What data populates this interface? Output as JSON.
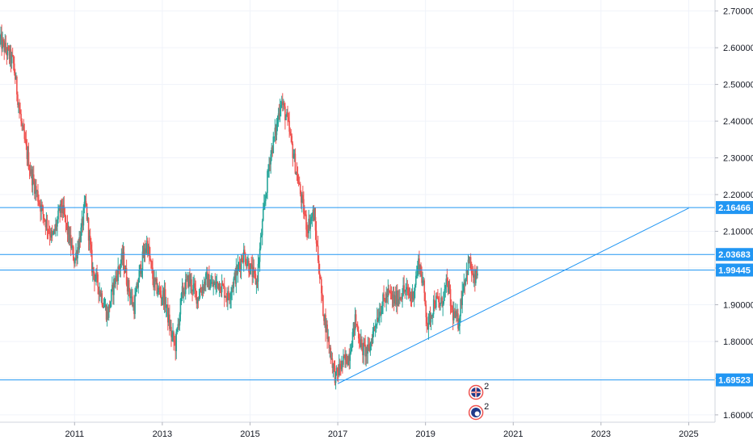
{
  "chart_data": {
    "type": "candlestick",
    "title": "",
    "xlabel": "",
    "ylabel": "",
    "x_ticks": [
      "2011",
      "2013",
      "2015",
      "2017",
      "2019",
      "2021",
      "2023",
      "2025"
    ],
    "y_ticks": [
      "2.70000",
      "2.60000",
      "2.50000",
      "2.40000",
      "2.30000",
      "2.20000",
      "2.10000",
      "2.00000",
      "1.90000",
      "1.80000",
      "1.70000",
      "1.60000"
    ],
    "ylim": [
      1.58,
      2.73
    ],
    "xlim": [
      2009.3,
      2025.6
    ],
    "grid": true,
    "colors": {
      "up": "#26a69a",
      "down": "#ef5350",
      "lines": "#2196f3",
      "tag_text": "#ffffff",
      "grid": "#f0f3fa"
    },
    "price_lines": [
      {
        "value": 2.16466,
        "label": "2.16466"
      },
      {
        "value": 2.03683,
        "label": "2.03683"
      },
      {
        "value": 1.99445,
        "label": "1.99445"
      },
      {
        "value": 1.69523,
        "label": "1.69523"
      }
    ],
    "trend_line": {
      "from": [
        2017.0,
        1.685
      ],
      "to": [
        2025.0,
        2.163
      ]
    },
    "price_path": [
      [
        2009.3,
        2.62
      ],
      [
        2009.6,
        2.56
      ],
      [
        2009.8,
        2.38
      ],
      [
        2010.0,
        2.26
      ],
      [
        2010.1,
        2.22
      ],
      [
        2010.3,
        2.14
      ],
      [
        2010.5,
        2.08
      ],
      [
        2010.7,
        2.17
      ],
      [
        2010.9,
        2.07
      ],
      [
        2011.0,
        2.02
      ],
      [
        2011.15,
        2.1
      ],
      [
        2011.25,
        2.18
      ],
      [
        2011.4,
        2.0
      ],
      [
        2011.6,
        1.93
      ],
      [
        2011.75,
        1.87
      ],
      [
        2011.9,
        1.96
      ],
      [
        2012.1,
        2.03
      ],
      [
        2012.2,
        1.96
      ],
      [
        2012.35,
        1.89
      ],
      [
        2012.5,
        2.0
      ],
      [
        2012.65,
        2.07
      ],
      [
        2012.8,
        1.96
      ],
      [
        2012.95,
        1.93
      ],
      [
        2013.05,
        1.92
      ],
      [
        2013.2,
        1.82
      ],
      [
        2013.3,
        1.79
      ],
      [
        2013.45,
        1.93
      ],
      [
        2013.6,
        1.97
      ],
      [
        2013.8,
        1.92
      ],
      [
        2014.0,
        1.97
      ],
      [
        2014.15,
        1.95
      ],
      [
        2014.3,
        1.96
      ],
      [
        2014.5,
        1.92
      ],
      [
        2014.7,
        1.99
      ],
      [
        2014.85,
        2.04
      ],
      [
        2015.0,
        2.0
      ],
      [
        2015.15,
        1.96
      ],
      [
        2015.3,
        2.14
      ],
      [
        2015.45,
        2.3
      ],
      [
        2015.6,
        2.38
      ],
      [
        2015.7,
        2.46
      ],
      [
        2015.85,
        2.4
      ],
      [
        2016.0,
        2.3
      ],
      [
        2016.15,
        2.2
      ],
      [
        2016.3,
        2.11
      ],
      [
        2016.45,
        2.15
      ],
      [
        2016.55,
        2.03
      ],
      [
        2016.65,
        1.9
      ],
      [
        2016.8,
        1.79
      ],
      [
        2016.95,
        1.7
      ],
      [
        2017.05,
        1.73
      ],
      [
        2017.25,
        1.76
      ],
      [
        2017.4,
        1.86
      ],
      [
        2017.55,
        1.78
      ],
      [
        2017.7,
        1.77
      ],
      [
        2017.85,
        1.85
      ],
      [
        2018.0,
        1.9
      ],
      [
        2018.15,
        1.93
      ],
      [
        2018.3,
        1.91
      ],
      [
        2018.5,
        1.94
      ],
      [
        2018.7,
        1.92
      ],
      [
        2018.85,
        2.02
      ],
      [
        2018.95,
        1.95
      ],
      [
        2019.05,
        1.84
      ],
      [
        2019.2,
        1.91
      ],
      [
        2019.35,
        1.9
      ],
      [
        2019.5,
        1.96
      ],
      [
        2019.6,
        1.88
      ],
      [
        2019.75,
        1.85
      ],
      [
        2019.85,
        1.95
      ],
      [
        2020.0,
        2.02
      ],
      [
        2020.1,
        1.96
      ],
      [
        2020.2,
        1.99
      ]
    ],
    "event_badges": [
      {
        "icon": "flag-icon",
        "count": "2"
      },
      {
        "icon": "earnings-icon",
        "count": "2"
      }
    ]
  }
}
